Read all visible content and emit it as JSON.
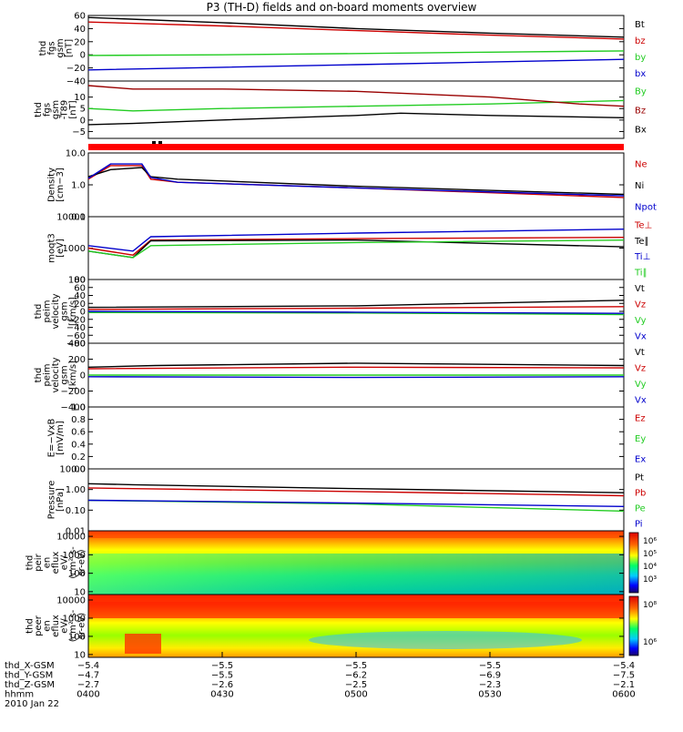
{
  "title": "P3 (TH-D) fields and on-board moments overview",
  "colors": {
    "black": "#000000",
    "red": "#cc0000",
    "green": "#22cc22",
    "blue": "#0000cc",
    "darkred": "#990000"
  },
  "chart_data": [
    {
      "type": "line",
      "ylabel": [
        "thd",
        "fgs",
        "gsm",
        "[nT]"
      ],
      "ylim": [
        -40,
        60
      ],
      "yticks": [
        "60",
        "40",
        "20",
        "0",
        "−20",
        "−40"
      ],
      "series": [
        {
          "name": "Bt",
          "color": "black",
          "points": [
            [
              0,
              57
            ],
            [
              30,
              49
            ],
            [
              60,
              40
            ],
            [
              90,
              33
            ],
            [
              120,
              27
            ]
          ]
        },
        {
          "name": "bz",
          "color": "red",
          "points": [
            [
              0,
              50
            ],
            [
              30,
              44
            ],
            [
              60,
              37
            ],
            [
              90,
              30
            ],
            [
              120,
              24
            ]
          ]
        },
        {
          "name": "by",
          "color": "green",
          "points": [
            [
              0,
              -1
            ],
            [
              30,
              0
            ],
            [
              60,
              2
            ],
            [
              90,
              4
            ],
            [
              120,
              6
            ]
          ]
        },
        {
          "name": "bx",
          "color": "blue",
          "points": [
            [
              0,
              -23
            ],
            [
              30,
              -19
            ],
            [
              60,
              -15
            ],
            [
              90,
              -11
            ],
            [
              120,
              -7
            ]
          ]
        }
      ]
    },
    {
      "type": "line",
      "ylabel": [
        "thd",
        "fgs",
        "gsm",
        "-T89",
        "[nT]"
      ],
      "ylim": [
        -8,
        17
      ],
      "yticks": [
        "10",
        "5",
        "0",
        "−5"
      ],
      "series": [
        {
          "name": "By",
          "color": "green",
          "points": [
            [
              0,
              5
            ],
            [
              10,
              4
            ],
            [
              30,
              5
            ],
            [
              60,
              6
            ],
            [
              90,
              7
            ],
            [
              110,
              8
            ],
            [
              120,
              8.5
            ]
          ]
        },
        {
          "name": "Bz",
          "color": "darkred",
          "points": [
            [
              0,
              15
            ],
            [
              10,
              13.5
            ],
            [
              30,
              13.5
            ],
            [
              60,
              12.5
            ],
            [
              90,
              10
            ],
            [
              110,
              7
            ],
            [
              120,
              6
            ]
          ]
        },
        {
          "name": "Bx",
          "color": "black",
          "points": [
            [
              0,
              -2
            ],
            [
              10,
              -1.5
            ],
            [
              30,
              0
            ],
            [
              60,
              2
            ],
            [
              70,
              3
            ],
            [
              90,
              2
            ],
            [
              120,
              1
            ]
          ]
        }
      ]
    },
    {
      "type": "line",
      "scale": "log",
      "ylabel": [
        "Density",
        "[cm−3]"
      ],
      "ylim": [
        0.1,
        10
      ],
      "yticks": [
        "10.0",
        "1.0",
        "0.1"
      ],
      "series": [
        {
          "name": "Ne",
          "color": "red",
          "points": [
            [
              0,
              1.5
            ],
            [
              5,
              4
            ],
            [
              12,
              4
            ],
            [
              14,
              1.5
            ],
            [
              20,
              1.2
            ],
            [
              60,
              0.8
            ],
            [
              120,
              0.4
            ]
          ]
        },
        {
          "name": "Ni",
          "color": "black",
          "points": [
            [
              0,
              1.8
            ],
            [
              5,
              3
            ],
            [
              12,
              3.5
            ],
            [
              14,
              1.8
            ],
            [
              20,
              1.5
            ],
            [
              60,
              0.9
            ],
            [
              120,
              0.5
            ]
          ]
        },
        {
          "name": "Npot",
          "color": "blue",
          "points": [
            [
              0,
              1.6
            ],
            [
              5,
              4.5
            ],
            [
              12,
              4.5
            ],
            [
              14,
              1.7
            ],
            [
              20,
              1.2
            ],
            [
              60,
              0.8
            ],
            [
              120,
              0.45
            ]
          ]
        }
      ]
    },
    {
      "type": "line",
      "scale": "log",
      "ylabel": [
        "moqt3",
        "[eV]"
      ],
      "ylim": [
        100,
        10000
      ],
      "yticks": [
        "10000",
        "1000",
        "100"
      ],
      "legend": [
        "Te⊥",
        "Te∥",
        "Ti⊥",
        "Ti∥"
      ],
      "series": [
        {
          "name": "Te⊥",
          "color": "red",
          "points": [
            [
              0,
              1000
            ],
            [
              10,
              600
            ],
            [
              14,
              1800
            ],
            [
              60,
              2000
            ],
            [
              120,
              2200
            ]
          ]
        },
        {
          "name": "Te∥",
          "color": "black",
          "points": [
            [
              0,
              800
            ],
            [
              10,
              500
            ],
            [
              14,
              1700
            ],
            [
              60,
              1800
            ],
            [
              120,
              1100
            ]
          ]
        },
        {
          "name": "Ti⊥",
          "color": "blue",
          "points": [
            [
              0,
              1200
            ],
            [
              10,
              800
            ],
            [
              14,
              2300
            ],
            [
              60,
              3000
            ],
            [
              120,
              4000
            ]
          ]
        },
        {
          "name": "Ti∥",
          "color": "green",
          "points": [
            [
              0,
              800
            ],
            [
              10,
              500
            ],
            [
              14,
              1200
            ],
            [
              60,
              1500
            ],
            [
              120,
              1800
            ]
          ]
        }
      ]
    },
    {
      "type": "line",
      "ylabel": [
        "thd",
        "peim",
        "velocity",
        "gsm",
        "[km/s]"
      ],
      "ylim": [
        -80,
        80
      ],
      "yticks": [
        "80",
        "60",
        "40",
        "20",
        "0",
        "−20",
        "−40",
        "−60",
        "−80"
      ],
      "series": [
        {
          "name": "Vt",
          "color": "black",
          "points": [
            [
              0,
              10
            ],
            [
              60,
              14
            ],
            [
              120,
              28
            ]
          ]
        },
        {
          "name": "Vz",
          "color": "red",
          "points": [
            [
              0,
              5
            ],
            [
              60,
              8
            ],
            [
              120,
              12
            ]
          ]
        },
        {
          "name": "Vy",
          "color": "green",
          "points": [
            [
              0,
              -3
            ],
            [
              60,
              -4
            ],
            [
              120,
              -8
            ]
          ]
        },
        {
          "name": "Vx",
          "color": "blue",
          "points": [
            [
              0,
              0
            ],
            [
              60,
              -2
            ],
            [
              120,
              -5
            ]
          ]
        }
      ]
    },
    {
      "type": "line",
      "ylabel": [
        "thd",
        "peim",
        "velocity",
        "gsm",
        "[km/s]"
      ],
      "ylim": [
        -400,
        400
      ],
      "yticks": [
        "400",
        "200",
        "0",
        "−200",
        "−400"
      ],
      "series": [
        {
          "name": "Vt",
          "color": "black",
          "points": [
            [
              0,
              100
            ],
            [
              15,
              120
            ],
            [
              60,
              150
            ],
            [
              120,
              120
            ]
          ]
        },
        {
          "name": "Vz",
          "color": "red",
          "points": [
            [
              0,
              80
            ],
            [
              60,
              100
            ],
            [
              120,
              90
            ]
          ]
        },
        {
          "name": "Vy",
          "color": "green",
          "points": [
            [
              0,
              0
            ],
            [
              60,
              0
            ],
            [
              120,
              0
            ]
          ]
        },
        {
          "name": "Vx",
          "color": "blue",
          "points": [
            [
              0,
              -20
            ],
            [
              60,
              -30
            ],
            [
              120,
              -20
            ]
          ]
        }
      ]
    },
    {
      "type": "line",
      "ylabel": [
        "E=−VxB",
        "[mV/m]"
      ],
      "ylim": [
        0,
        1
      ],
      "yticks": [
        "1.0",
        "0.8",
        "0.6",
        "0.4",
        "0.2",
        "0.0"
      ],
      "series": [
        {
          "name": "Ez",
          "color": "red",
          "points": []
        },
        {
          "name": "Ey",
          "color": "green",
          "points": []
        },
        {
          "name": "Ex",
          "color": "blue",
          "points": []
        }
      ]
    },
    {
      "type": "line",
      "scale": "log",
      "ylabel": [
        "Pressure",
        "[nPa]"
      ],
      "ylim": [
        0.01,
        10
      ],
      "yticks": [
        "10.00",
        "1.00",
        "0.10",
        "0.01"
      ],
      "series": [
        {
          "name": "Pt",
          "color": "black",
          "points": [
            [
              0,
              1.9
            ],
            [
              10,
              1.7
            ],
            [
              60,
              1.1
            ],
            [
              120,
              0.7
            ]
          ]
        },
        {
          "name": "Pb",
          "color": "red",
          "points": [
            [
              0,
              1.2
            ],
            [
              10,
              1.1
            ],
            [
              60,
              0.8
            ],
            [
              120,
              0.5
            ]
          ]
        },
        {
          "name": "Pe",
          "color": "green",
          "points": [
            [
              0,
              0.3
            ],
            [
              10,
              0.28
            ],
            [
              60,
              0.2
            ],
            [
              120,
              0.09
            ]
          ]
        },
        {
          "name": "Pi",
          "color": "blue",
          "points": [
            [
              0,
              0.3
            ],
            [
              10,
              0.29
            ],
            [
              60,
              0.22
            ],
            [
              120,
              0.15
            ]
          ]
        }
      ]
    },
    {
      "type": "heatmap",
      "ylabel": [
        "thd",
        "peir",
        "en",
        "eflux",
        "eV/",
        "(cm²-s-",
        "sr-eV)"
      ],
      "scale": "log",
      "ylim": [
        7,
        20000
      ],
      "yticks": [
        "10000",
        "1000",
        "100",
        "10"
      ],
      "colorbar_ticks": [
        "10⁶",
        "10⁵",
        "10⁴",
        "10³"
      ]
    },
    {
      "type": "heatmap",
      "ylabel": [
        "thd",
        "peer",
        "en",
        "eflux",
        "eV/",
        "(cm²-s-",
        "sr-eV)"
      ],
      "scale": "log",
      "ylim": [
        7,
        20000
      ],
      "yticks": [
        "10000",
        "1000",
        "100",
        "10"
      ],
      "colorbar_ticks": [
        "10⁸",
        "10⁶"
      ]
    }
  ],
  "xaxis": {
    "rows": [
      {
        "label": "thd_X-GSM",
        "values": [
          "−5.4",
          "−5.5",
          "−5.5",
          "−5.5",
          "−5.4"
        ]
      },
      {
        "label": "thd_Y-GSM",
        "values": [
          "−4.7",
          "−5.5",
          "−6.2",
          "−6.9",
          "−7.5"
        ]
      },
      {
        "label": "thd_Z-GSM",
        "values": [
          "−2.7",
          "−2.6",
          "−2.5",
          "−2.3",
          "−2.1"
        ]
      },
      {
        "label": "hhmm",
        "values": [
          "0400",
          "0430",
          "0500",
          "0530",
          "0600"
        ]
      }
    ],
    "date": "2010 Jan 22"
  }
}
